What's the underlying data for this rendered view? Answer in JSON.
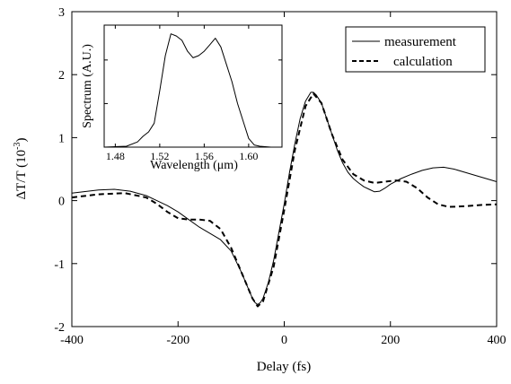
{
  "chart_data": [
    {
      "type": "line",
      "xlabel": "Delay (fs)",
      "ylabel_main": "ΔT/T (10",
      "ylabel_exp": "-3",
      "ylabel_close": ")",
      "xlim": [
        -400,
        400
      ],
      "ylim": [
        -2,
        3
      ],
      "x_ticks": [
        -400,
        -200,
        0,
        200,
        400
      ],
      "x_tick_labels": [
        "-400",
        "-200",
        "0",
        "200",
        "400"
      ],
      "y_ticks": [
        -2,
        -1,
        0,
        1,
        2,
        3
      ],
      "y_tick_labels": [
        "-2",
        "-1",
        "0",
        "1",
        "2",
        "3"
      ],
      "grid": false,
      "legend_position": "top-right",
      "series": [
        {
          "name": "measurement",
          "style": "solid",
          "x": [
            -400,
            -350,
            -320,
            -290,
            -260,
            -240,
            -220,
            -200,
            -180,
            -160,
            -140,
            -120,
            -100,
            -80,
            -70,
            -60,
            -55,
            -50,
            -45,
            -40,
            -30,
            -20,
            -10,
            0,
            10,
            20,
            30,
            40,
            50,
            55,
            60,
            70,
            80,
            90,
            100,
            110,
            120,
            130,
            140,
            150,
            160,
            170,
            180,
            190,
            200,
            220,
            240,
            260,
            280,
            300,
            320,
            340,
            360,
            380,
            400
          ],
          "y": [
            0.12,
            0.17,
            0.18,
            0.15,
            0.08,
            0.0,
            -0.08,
            -0.18,
            -0.3,
            -0.42,
            -0.52,
            -0.62,
            -0.8,
            -1.15,
            -1.35,
            -1.55,
            -1.62,
            -1.65,
            -1.62,
            -1.55,
            -1.3,
            -0.95,
            -0.5,
            -0.05,
            0.45,
            0.9,
            1.3,
            1.58,
            1.72,
            1.72,
            1.68,
            1.55,
            1.3,
            1.05,
            0.8,
            0.6,
            0.45,
            0.35,
            0.28,
            0.22,
            0.18,
            0.14,
            0.15,
            0.2,
            0.26,
            0.35,
            0.42,
            0.48,
            0.52,
            0.53,
            0.5,
            0.45,
            0.4,
            0.35,
            0.3
          ]
        },
        {
          "name": "calculation",
          "style": "dashed",
          "x": [
            -400,
            -350,
            -300,
            -260,
            -240,
            -220,
            -200,
            -180,
            -160,
            -140,
            -120,
            -100,
            -80,
            -60,
            -50,
            -40,
            -20,
            0,
            20,
            40,
            55,
            70,
            90,
            110,
            130,
            150,
            170,
            190,
            210,
            230,
            250,
            270,
            290,
            310,
            340,
            370,
            400
          ],
          "y": [
            0.05,
            0.1,
            0.12,
            0.05,
            -0.05,
            -0.18,
            -0.28,
            -0.3,
            -0.3,
            -0.32,
            -0.45,
            -0.75,
            -1.15,
            -1.55,
            -1.68,
            -1.6,
            -1.05,
            -0.15,
            0.8,
            1.5,
            1.7,
            1.55,
            1.05,
            0.65,
            0.42,
            0.32,
            0.28,
            0.3,
            0.32,
            0.3,
            0.2,
            0.05,
            -0.06,
            -0.1,
            -0.09,
            -0.07,
            -0.06
          ]
        }
      ]
    },
    {
      "type": "line",
      "inset": true,
      "xlabel_main": "Wavelength (",
      "xlabel_unit": "μm",
      "xlabel_close": ")",
      "ylabel": "Spectrum (A.U.)",
      "xlim": [
        1.47,
        1.63
      ],
      "ylim": [
        0,
        2.8
      ],
      "x_ticks": [
        1.48,
        1.52,
        1.56,
        1.6
      ],
      "x_tick_labels": [
        "1.48",
        "1.52",
        "1.56",
        "1.60"
      ],
      "y_ticks": [
        0,
        1,
        2
      ],
      "grid": false,
      "series": [
        {
          "style": "solid",
          "x": [
            1.47,
            1.49,
            1.5,
            1.505,
            1.51,
            1.515,
            1.52,
            1.525,
            1.53,
            1.535,
            1.54,
            1.545,
            1.55,
            1.555,
            1.56,
            1.565,
            1.57,
            1.575,
            1.58,
            1.585,
            1.59,
            1.595,
            1.6,
            1.605,
            1.61,
            1.62,
            1.63
          ],
          "y": [
            0,
            0.02,
            0.12,
            0.25,
            0.35,
            0.55,
            1.3,
            2.1,
            2.6,
            2.55,
            2.45,
            2.2,
            2.05,
            2.1,
            2.2,
            2.35,
            2.5,
            2.3,
            1.9,
            1.5,
            1.0,
            0.6,
            0.2,
            0.05,
            0.02,
            0.0,
            0.0
          ]
        }
      ]
    },
    {
      "legend": [
        {
          "label": "measurement",
          "style": "solid"
        },
        {
          "label": "calculation",
          "style": "dashed"
        }
      ]
    }
  ]
}
